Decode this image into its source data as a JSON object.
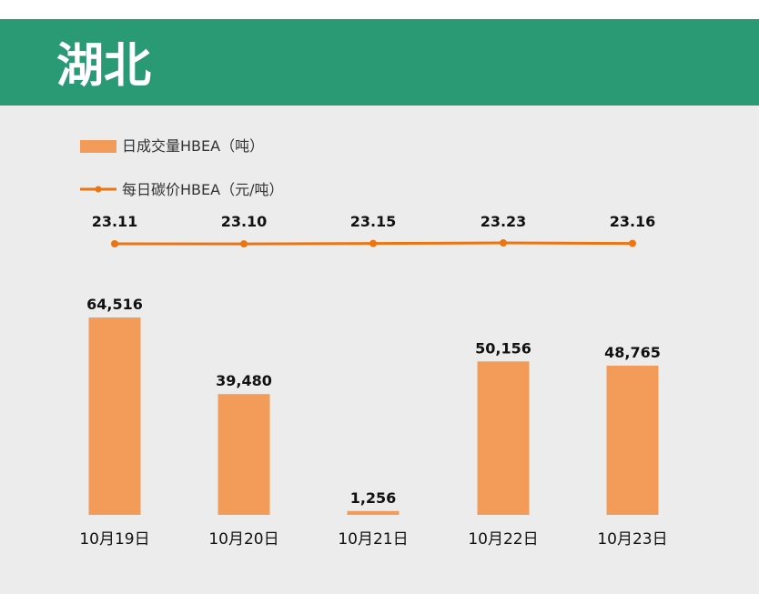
{
  "header": {
    "title": "湖北"
  },
  "colors": {
    "header_bg": "#2a9a74",
    "bar": "#f39c5a",
    "line": "#ec7411",
    "panel_bg": "#ececec"
  },
  "chart_data": {
    "type": "bar",
    "categories": [
      "10月19日",
      "10月20日",
      "10月21日",
      "10月22日",
      "10月23日"
    ],
    "series": [
      {
        "name": "日成交量HBEA（吨）",
        "type": "bar",
        "values": [
          64516,
          39480,
          1256,
          50156,
          48765
        ],
        "labels": [
          "64,516",
          "39,480",
          "1,256",
          "50,156",
          "48,765"
        ]
      },
      {
        "name": "每日碳价HBEA（元/吨）",
        "type": "line",
        "values": [
          23.11,
          23.1,
          23.15,
          23.23,
          23.16
        ],
        "labels": [
          "23.11",
          "23.10",
          "23.15",
          "23.23",
          "23.16"
        ]
      }
    ],
    "legend": "top-left",
    "grid": false
  }
}
